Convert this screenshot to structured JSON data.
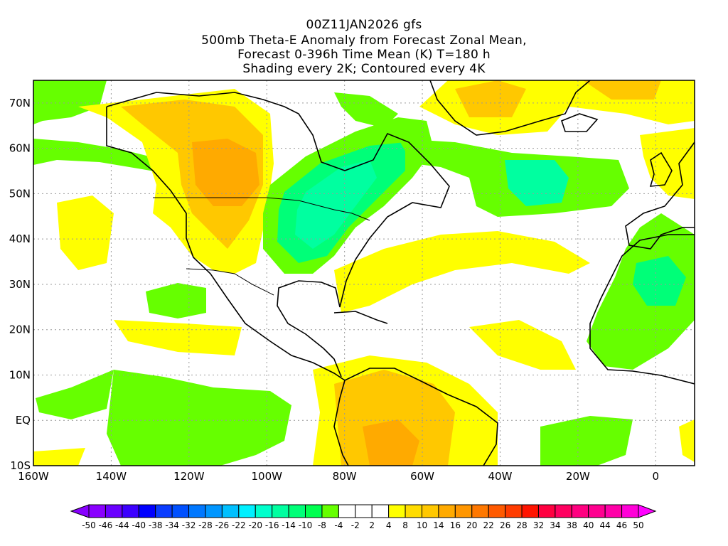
{
  "title": {
    "line1": "00Z11JAN2026 gfs",
    "line2": "500mb Theta-E Anomaly from Forecast Zonal Mean,",
    "line3": "Forecast 0-396h Time Mean (K) T=180 h",
    "line4": "Shading every 2K; Contoured every 4K"
  },
  "map": {
    "lon_labels": [
      "160W",
      "140W",
      "120W",
      "100W",
      "80W",
      "60W",
      "40W",
      "20W",
      "0"
    ],
    "lat_labels": [
      "70N",
      "60N",
      "50N",
      "40N",
      "30N",
      "20N",
      "10N",
      "EQ",
      "10S"
    ],
    "lon_range": [
      -160,
      10
    ],
    "lat_range": [
      -10,
      75
    ]
  },
  "colorbar": {
    "labels": [
      "-50",
      "-46",
      "-44",
      "-40",
      "-38",
      "-34",
      "-32",
      "-28",
      "-26",
      "-22",
      "-20",
      "-16",
      "-14",
      "-10",
      "-8",
      "-4",
      "-2",
      "2",
      "4",
      "8",
      "10",
      "14",
      "16",
      "20",
      "22",
      "26",
      "28",
      "32",
      "34",
      "38",
      "40",
      "44",
      "46",
      "50"
    ],
    "colors": [
      "#8a00ff",
      "#6a00ff",
      "#3c00ff",
      "#0000ff",
      "#0a3cff",
      "#0050ff",
      "#0078ff",
      "#0096ff",
      "#00c0ff",
      "#00f0ff",
      "#00ffcc",
      "#00ffa0",
      "#00ff78",
      "#00ff50",
      "#66ff00",
      "#ffffff",
      "#ffffff",
      "#ffffff",
      "#ffff00",
      "#ffdc00",
      "#ffc800",
      "#ffaa00",
      "#ff9600",
      "#ff7800",
      "#ff5a00",
      "#ff3c00",
      "#ff1400",
      "#ff0040",
      "#ff0060",
      "#ff0080",
      "#ff0090",
      "#ff00a8",
      "#ff00d8"
    ],
    "under_color": "#8800ff",
    "over_color": "#ff00ff"
  }
}
